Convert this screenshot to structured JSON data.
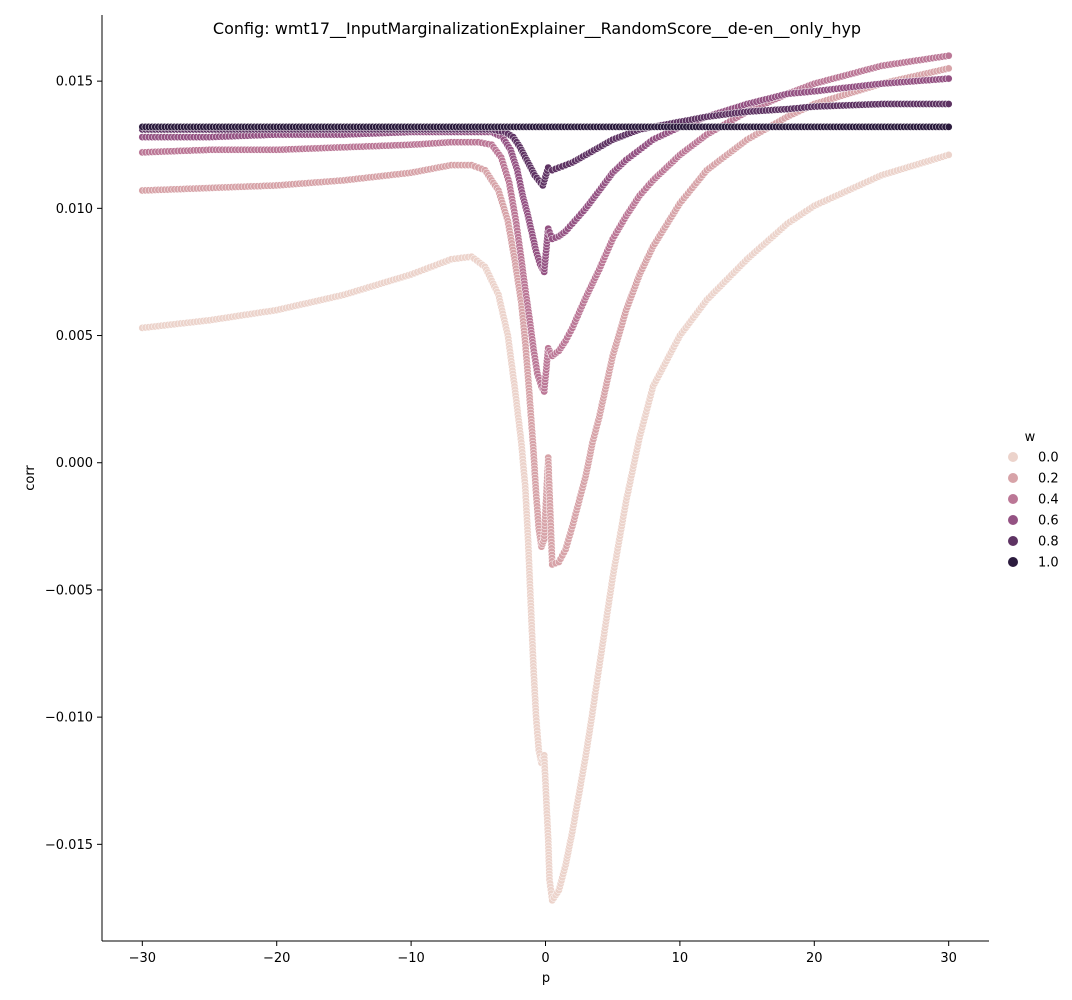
{
  "chart_data": {
    "type": "scatter",
    "title": "Config: wmt17__InputMarginalizationExplainer__RandomScore__de-en__only_hyp",
    "xlabel": "p",
    "ylabel": "corr",
    "xlim": [
      -33,
      33
    ],
    "ylim": [
      -0.0188,
      0.0176
    ],
    "x_ticks": [
      -30,
      -20,
      -10,
      0,
      10,
      20,
      30
    ],
    "x_tick_labels": [
      "−30",
      "−20",
      "−10",
      "0",
      "10",
      "20",
      "30"
    ],
    "y_ticks": [
      -0.015,
      -0.01,
      -0.005,
      0.0,
      0.005,
      0.01,
      0.015
    ],
    "y_tick_labels": [
      "−0.015",
      "−0.010",
      "−0.005",
      "0.000",
      "0.005",
      "0.010",
      "0.015"
    ],
    "grid": false,
    "legend": {
      "title": "w",
      "placement": "right",
      "entries": [
        {
          "label": "0.0",
          "color": "#ecd3cb"
        },
        {
          "label": "0.2",
          "color": "#d7a3a8"
        },
        {
          "label": "0.4",
          "color": "#bb7796"
        },
        {
          "label": "0.6",
          "color": "#945283"
        },
        {
          "label": "0.8",
          "color": "#5e3363"
        },
        {
          "label": "1.0",
          "color": "#2b1b3d"
        }
      ]
    },
    "series": [
      {
        "name": "0.0",
        "color": "#ecd3cb",
        "points": [
          [
            -30,
            0.0053
          ],
          [
            -25,
            0.0056
          ],
          [
            -20,
            0.006
          ],
          [
            -15,
            0.0066
          ],
          [
            -10,
            0.0074
          ],
          [
            -7,
            0.008
          ],
          [
            -5.5,
            0.0081
          ],
          [
            -4.5,
            0.0077
          ],
          [
            -3.5,
            0.0066
          ],
          [
            -2.8,
            0.005
          ],
          [
            -2.3,
            0.003
          ],
          [
            -1.8,
            0.0008
          ],
          [
            -1.5,
            -0.001
          ],
          [
            -1.3,
            -0.003
          ],
          [
            -1.1,
            -0.0055
          ],
          [
            -0.9,
            -0.008
          ],
          [
            -0.7,
            -0.01
          ],
          [
            -0.5,
            -0.0113
          ],
          [
            -0.3,
            -0.0118
          ],
          [
            -0.1,
            -0.0115
          ],
          [
            0.2,
            -0.0148
          ],
          [
            0.3,
            -0.0164
          ],
          [
            0.5,
            -0.0172
          ],
          [
            1.0,
            -0.0168
          ],
          [
            1.5,
            -0.0158
          ],
          [
            2.0,
            -0.0145
          ],
          [
            2.5,
            -0.013
          ],
          [
            3.0,
            -0.0115
          ],
          [
            3.5,
            -0.0098
          ],
          [
            4.0,
            -0.008
          ],
          [
            5.0,
            -0.0045
          ],
          [
            6.0,
            -0.0015
          ],
          [
            7.0,
            0.001
          ],
          [
            8.0,
            0.003
          ],
          [
            10.0,
            0.005
          ],
          [
            12.0,
            0.0064
          ],
          [
            15.0,
            0.008
          ],
          [
            18.0,
            0.0094
          ],
          [
            20.0,
            0.0101
          ],
          [
            25.0,
            0.0113
          ],
          [
            30.0,
            0.0121
          ]
        ]
      },
      {
        "name": "0.2",
        "color": "#d7a3a8",
        "points": [
          [
            -30,
            0.0107
          ],
          [
            -25,
            0.0108
          ],
          [
            -20,
            0.0109
          ],
          [
            -15,
            0.0111
          ],
          [
            -10,
            0.0114
          ],
          [
            -7,
            0.0117
          ],
          [
            -5.5,
            0.0117
          ],
          [
            -4.5,
            0.0115
          ],
          [
            -3.5,
            0.0107
          ],
          [
            -2.8,
            0.0095
          ],
          [
            -2.3,
            0.008
          ],
          [
            -1.8,
            0.0063
          ],
          [
            -1.5,
            0.0047
          ],
          [
            -1.2,
            0.0027
          ],
          [
            -0.9,
            0.0005
          ],
          [
            -0.7,
            -0.0012
          ],
          [
            -0.5,
            -0.0026
          ],
          [
            -0.3,
            -0.0033
          ],
          [
            -0.1,
            -0.003
          ],
          [
            0.2,
            0.0002
          ],
          [
            0.5,
            -0.004
          ],
          [
            1.0,
            -0.0039
          ],
          [
            1.5,
            -0.0034
          ],
          [
            2.0,
            -0.0025
          ],
          [
            2.5,
            -0.0015
          ],
          [
            3.0,
            -0.0005
          ],
          [
            3.5,
            0.0008
          ],
          [
            4.0,
            0.0018
          ],
          [
            5.0,
            0.0042
          ],
          [
            6.0,
            0.006
          ],
          [
            7.0,
            0.0074
          ],
          [
            8.0,
            0.0085
          ],
          [
            10.0,
            0.0102
          ],
          [
            12.0,
            0.0115
          ],
          [
            15.0,
            0.0127
          ],
          [
            18.0,
            0.0136
          ],
          [
            20.0,
            0.0141
          ],
          [
            25.0,
            0.0149
          ],
          [
            30.0,
            0.0155
          ]
        ]
      },
      {
        "name": "0.4",
        "color": "#bb7796",
        "points": [
          [
            -30,
            0.0122
          ],
          [
            -25,
            0.0123
          ],
          [
            -20,
            0.0123
          ],
          [
            -15,
            0.0124
          ],
          [
            -10,
            0.0125
          ],
          [
            -7,
            0.0126
          ],
          [
            -5,
            0.0126
          ],
          [
            -4,
            0.0125
          ],
          [
            -3.3,
            0.012
          ],
          [
            -2.7,
            0.011
          ],
          [
            -2.2,
            0.0095
          ],
          [
            -1.8,
            0.008
          ],
          [
            -1.5,
            0.0068
          ],
          [
            -1.2,
            0.0057
          ],
          [
            -0.9,
            0.0045
          ],
          [
            -0.6,
            0.0035
          ],
          [
            -0.3,
            0.003
          ],
          [
            -0.1,
            0.0028
          ],
          [
            0.2,
            0.0045
          ],
          [
            0.5,
            0.0042
          ],
          [
            1.0,
            0.0044
          ],
          [
            1.5,
            0.0048
          ],
          [
            2.0,
            0.0053
          ],
          [
            3.0,
            0.0065
          ],
          [
            4.0,
            0.0076
          ],
          [
            5.0,
            0.0088
          ],
          [
            6.0,
            0.0097
          ],
          [
            7.0,
            0.0105
          ],
          [
            8.0,
            0.0111
          ],
          [
            10.0,
            0.0121
          ],
          [
            12.0,
            0.0129
          ],
          [
            15.0,
            0.0138
          ],
          [
            18.0,
            0.0145
          ],
          [
            20.0,
            0.0149
          ],
          [
            25.0,
            0.0156
          ],
          [
            30.0,
            0.016
          ]
        ]
      },
      {
        "name": "0.6",
        "color": "#945283",
        "points": [
          [
            -30,
            0.0128
          ],
          [
            -25,
            0.0128
          ],
          [
            -20,
            0.0129
          ],
          [
            -15,
            0.0129
          ],
          [
            -10,
            0.013
          ],
          [
            -7,
            0.013
          ],
          [
            -5,
            0.013
          ],
          [
            -4,
            0.013
          ],
          [
            -3.2,
            0.0128
          ],
          [
            -2.6,
            0.0123
          ],
          [
            -2.1,
            0.0115
          ],
          [
            -1.7,
            0.0105
          ],
          [
            -1.3,
            0.0097
          ],
          [
            -1.0,
            0.009
          ],
          [
            -0.7,
            0.0083
          ],
          [
            -0.4,
            0.0078
          ],
          [
            -0.1,
            0.0075
          ],
          [
            0.2,
            0.0092
          ],
          [
            0.5,
            0.0088
          ],
          [
            1.0,
            0.0089
          ],
          [
            1.5,
            0.0091
          ],
          [
            2.0,
            0.0094
          ],
          [
            3.0,
            0.01
          ],
          [
            4.0,
            0.0107
          ],
          [
            5.0,
            0.0114
          ],
          [
            6.0,
            0.0119
          ],
          [
            7.0,
            0.0123
          ],
          [
            8.0,
            0.0127
          ],
          [
            10.0,
            0.0132
          ],
          [
            12.0,
            0.0136
          ],
          [
            15.0,
            0.0141
          ],
          [
            18.0,
            0.0145
          ],
          [
            20.0,
            0.0146
          ],
          [
            25.0,
            0.0149
          ],
          [
            30.0,
            0.0151
          ]
        ]
      },
      {
        "name": "0.8",
        "color": "#5e3363",
        "points": [
          [
            -30,
            0.0131
          ],
          [
            -25,
            0.0131
          ],
          [
            -20,
            0.0131
          ],
          [
            -15,
            0.0131
          ],
          [
            -10,
            0.0131
          ],
          [
            -7,
            0.0131
          ],
          [
            -5,
            0.0131
          ],
          [
            -4,
            0.0131
          ],
          [
            -3.0,
            0.013
          ],
          [
            -2.4,
            0.0128
          ],
          [
            -1.9,
            0.0124
          ],
          [
            -1.5,
            0.012
          ],
          [
            -1.1,
            0.0116
          ],
          [
            -0.8,
            0.0113
          ],
          [
            -0.5,
            0.0111
          ],
          [
            -0.2,
            0.0109
          ],
          [
            0.2,
            0.0116
          ],
          [
            0.5,
            0.0115
          ],
          [
            1.0,
            0.0116
          ],
          [
            2.0,
            0.0118
          ],
          [
            3.0,
            0.0121
          ],
          [
            4.0,
            0.0124
          ],
          [
            5.0,
            0.0127
          ],
          [
            7.0,
            0.0131
          ],
          [
            10.0,
            0.0134
          ],
          [
            12.0,
            0.0136
          ],
          [
            15.0,
            0.0138
          ],
          [
            18.0,
            0.0139
          ],
          [
            20.0,
            0.014
          ],
          [
            25.0,
            0.0141
          ],
          [
            30.0,
            0.0141
          ]
        ]
      },
      {
        "name": "1.0",
        "color": "#2b1b3d",
        "points": [
          [
            -30,
            0.0132
          ],
          [
            -20,
            0.0132
          ],
          [
            -10,
            0.0132
          ],
          [
            0,
            0.0132
          ],
          [
            10,
            0.0132
          ],
          [
            20,
            0.0132
          ],
          [
            30,
            0.0132
          ]
        ]
      }
    ]
  }
}
